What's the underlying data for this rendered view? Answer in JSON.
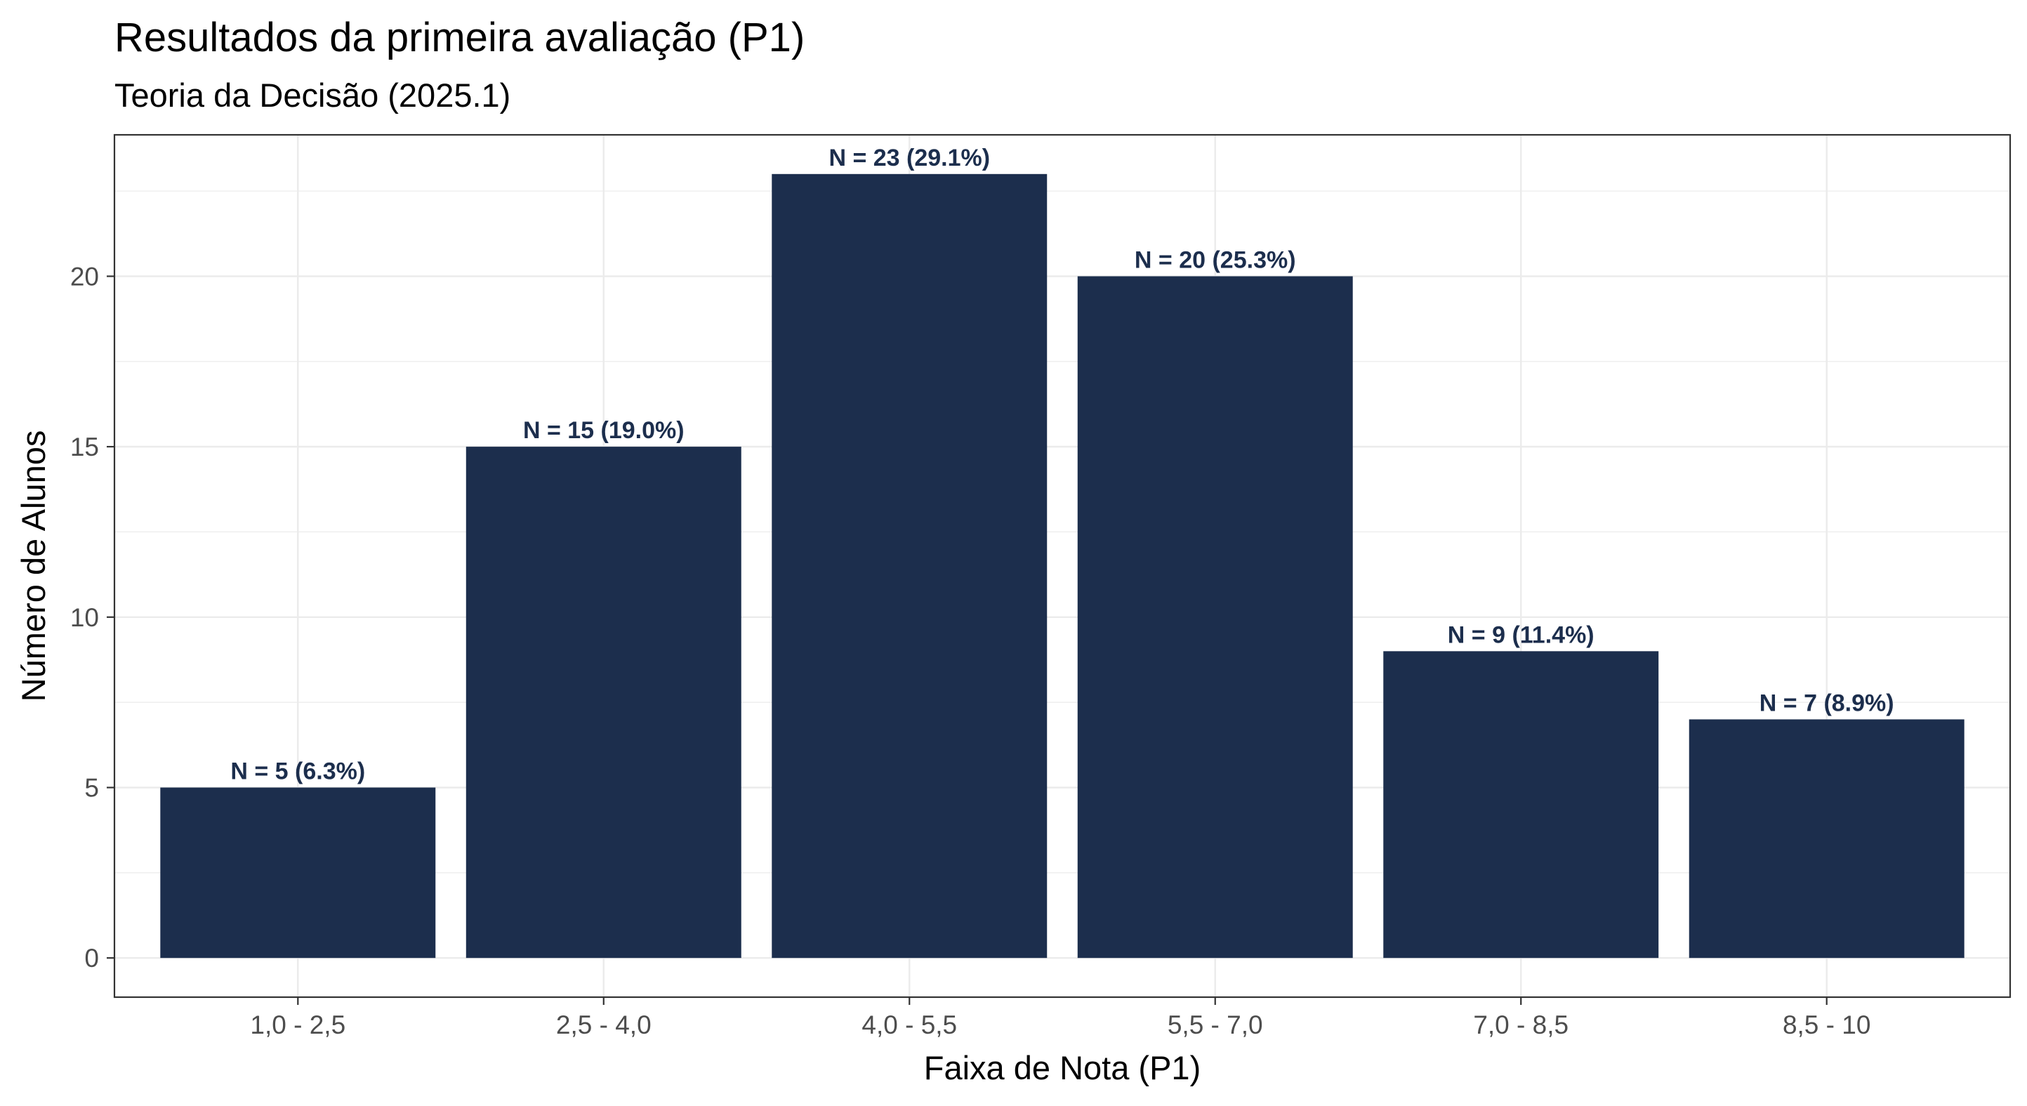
{
  "chart_data": {
    "type": "bar",
    "title": "Resultados da primeira avaliação (P1)",
    "subtitle": "Teoria da Decisão (2025.1)",
    "xlabel": "Faixa de Nota (P1)",
    "ylabel": "Número de Alunos",
    "categories": [
      "1,0 - 2,5",
      "2,5 - 4,0",
      "4,0 - 5,5",
      "5,5 - 7,0",
      "7,0 - 8,5",
      "8,5 - 10"
    ],
    "values": [
      5,
      15,
      23,
      20,
      9,
      7
    ],
    "data_labels": [
      "N = 5 (6.3%)",
      "N = 15 (19.0%)",
      "N = 23 (29.1%)",
      "N = 20 (25.3%)",
      "N = 9 (11.4%)",
      "N = 7 (8.9%)"
    ],
    "y_ticks": [
      0,
      5,
      10,
      15,
      20
    ],
    "ylim": [
      -1.15,
      24.15
    ],
    "grid": true,
    "legend": "none",
    "bar_color": "#1c2e4d",
    "label_color": "#1c2e4d"
  }
}
